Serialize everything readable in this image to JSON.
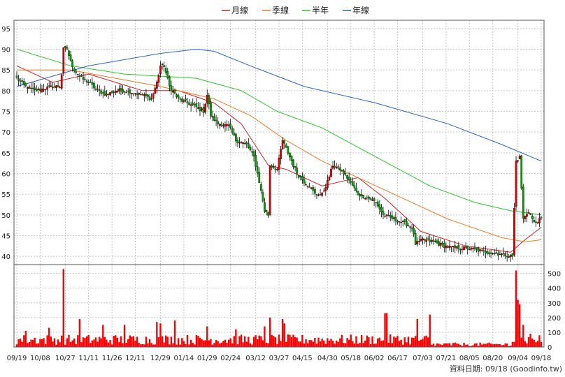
{
  "legend": [
    {
      "label": "月線",
      "color": "#d42020"
    },
    {
      "label": "季線",
      "color": "#f07820"
    },
    {
      "label": "半年",
      "color": "#28c828"
    },
    {
      "label": "年線",
      "color": "#2864c8"
    }
  ],
  "source_label": "資料日期: 09/18  (Goodinfo.tw)",
  "colors": {
    "up": "#e00000",
    "down": "#00a000",
    "volume": "#ff0000",
    "grid": "#c8c8c8"
  },
  "chart_data": [
    {
      "type": "candlestick",
      "title": "",
      "ylim": [
        38,
        97
      ],
      "y_ticks": [
        40,
        45,
        50,
        55,
        60,
        65,
        70,
        75,
        80,
        85,
        90,
        95
      ],
      "x_tick_labels": [
        "09/19",
        "10/08",
        "10/27",
        "11/11",
        "11/26",
        "12/11",
        "12/29",
        "01/14",
        "01/29",
        "02/24",
        "03/12",
        "03/27",
        "04/15",
        "04/30",
        "05/18",
        "06/02",
        "06/17",
        "07/03",
        "07/21",
        "08/05",
        "08/20",
        "09/04",
        "09/18"
      ],
      "close_anchors": [
        [
          0,
          83
        ],
        [
          5,
          81
        ],
        [
          10,
          80
        ],
        [
          15,
          80.5
        ],
        [
          20,
          81
        ],
        [
          24,
          81
        ],
        [
          25,
          84
        ],
        [
          26,
          90
        ],
        [
          28,
          90
        ],
        [
          30,
          87
        ],
        [
          32,
          85
        ],
        [
          34,
          84
        ],
        [
          36,
          83
        ],
        [
          40,
          82
        ],
        [
          45,
          80
        ],
        [
          50,
          79
        ],
        [
          55,
          80
        ],
        [
          60,
          80
        ],
        [
          65,
          79.5
        ],
        [
          70,
          79
        ],
        [
          75,
          78
        ],
        [
          78,
          82
        ],
        [
          80,
          86
        ],
        [
          82,
          86
        ],
        [
          85,
          81
        ],
        [
          90,
          78
        ],
        [
          95,
          77
        ],
        [
          100,
          76
        ],
        [
          104,
          75
        ],
        [
          106,
          79
        ],
        [
          108,
          74
        ],
        [
          112,
          72
        ],
        [
          118,
          71.5
        ],
        [
          122,
          68
        ],
        [
          128,
          67
        ],
        [
          132,
          64
        ],
        [
          135,
          58
        ],
        [
          138,
          51
        ],
        [
          140,
          50
        ],
        [
          141,
          62
        ],
        [
          145,
          61
        ],
        [
          148,
          68
        ],
        [
          150,
          66
        ],
        [
          152,
          64
        ],
        [
          156,
          60
        ],
        [
          160,
          58
        ],
        [
          163,
          57
        ],
        [
          166,
          55
        ],
        [
          170,
          55
        ],
        [
          173,
          58
        ],
        [
          176,
          62
        ],
        [
          180,
          61
        ],
        [
          184,
          59
        ],
        [
          187,
          57
        ],
        [
          190,
          55
        ],
        [
          196,
          54
        ],
        [
          200,
          53
        ],
        [
          204,
          50
        ],
        [
          210,
          49
        ],
        [
          216,
          48
        ],
        [
          220,
          47
        ],
        [
          222,
          43
        ],
        [
          226,
          44
        ],
        [
          232,
          43.5
        ],
        [
          238,
          42.5
        ],
        [
          244,
          42
        ],
        [
          250,
          42
        ],
        [
          256,
          41.5
        ],
        [
          262,
          41
        ],
        [
          270,
          40.5
        ],
        [
          276,
          40
        ],
        [
          278,
          63
        ],
        [
          280,
          64
        ],
        [
          282,
          49
        ],
        [
          285,
          51
        ],
        [
          288,
          48
        ],
        [
          292,
          49
        ]
      ],
      "ma_series": [
        {
          "name": "月線",
          "points": [
            [
              0,
              86
            ],
            [
              20,
              82
            ],
            [
              40,
              84
            ],
            [
              70,
              80
            ],
            [
              90,
              80
            ],
            [
              110,
              77
            ],
            [
              125,
              72
            ],
            [
              140,
              62
            ],
            [
              150,
              61
            ],
            [
              170,
              57
            ],
            [
              190,
              59
            ],
            [
              205,
              54
            ],
            [
              225,
              46
            ],
            [
              250,
              42.5
            ],
            [
              275,
              41
            ],
            [
              283,
              44
            ],
            [
              292,
              47
            ]
          ]
        },
        {
          "name": "季線",
          "points": [
            [
              0,
              85
            ],
            [
              30,
              85
            ],
            [
              55,
              83
            ],
            [
              80,
              81
            ],
            [
              110,
              78
            ],
            [
              130,
              74
            ],
            [
              150,
              68
            ],
            [
              170,
              63
            ],
            [
              195,
              58
            ],
            [
              215,
              54
            ],
            [
              240,
              49
            ],
            [
              270,
              44.5
            ],
            [
              283,
              43.5
            ],
            [
              292,
              44
            ]
          ]
        },
        {
          "name": "半年",
          "points": [
            [
              0,
              90
            ],
            [
              30,
              86
            ],
            [
              60,
              84
            ],
            [
              100,
              83
            ],
            [
              125,
              80
            ],
            [
              145,
              75
            ],
            [
              170,
              71
            ],
            [
              200,
              64
            ],
            [
              230,
              57
            ],
            [
              255,
              53
            ],
            [
              275,
              51
            ],
            [
              292,
              50
            ]
          ]
        },
        {
          "name": "年線",
          "points": [
            [
              0,
              81
            ],
            [
              40,
              86
            ],
            [
              80,
              89
            ],
            [
              100,
              90
            ],
            [
              110,
              89.5
            ],
            [
              130,
              86
            ],
            [
              160,
              81
            ],
            [
              200,
              77
            ],
            [
              240,
              72
            ],
            [
              270,
              67
            ],
            [
              292,
              63
            ]
          ]
        }
      ]
    },
    {
      "type": "bar",
      "title": "",
      "ylim": [
        0,
        560
      ],
      "y_ticks": [
        0,
        100,
        200,
        300,
        400,
        500
      ],
      "volume_spikes": [
        {
          "i": 26,
          "v": 530
        },
        {
          "i": 18,
          "v": 130
        },
        {
          "i": 5,
          "v": 110
        },
        {
          "i": 35,
          "v": 190
        },
        {
          "i": 48,
          "v": 150
        },
        {
          "i": 60,
          "v": 150
        },
        {
          "i": 78,
          "v": 170
        },
        {
          "i": 80,
          "v": 160
        },
        {
          "i": 88,
          "v": 180
        },
        {
          "i": 106,
          "v": 140
        },
        {
          "i": 122,
          "v": 120
        },
        {
          "i": 138,
          "v": 140
        },
        {
          "i": 141,
          "v": 200
        },
        {
          "i": 148,
          "v": 190
        },
        {
          "i": 149,
          "v": 160
        },
        {
          "i": 205,
          "v": 230
        },
        {
          "i": 206,
          "v": 230
        },
        {
          "i": 223,
          "v": 190
        },
        {
          "i": 230,
          "v": 220
        },
        {
          "i": 278,
          "v": 520
        },
        {
          "i": 279,
          "v": 320
        },
        {
          "i": 280,
          "v": 290
        },
        {
          "i": 282,
          "v": 150
        },
        {
          "i": 286,
          "v": 90
        }
      ]
    }
  ]
}
